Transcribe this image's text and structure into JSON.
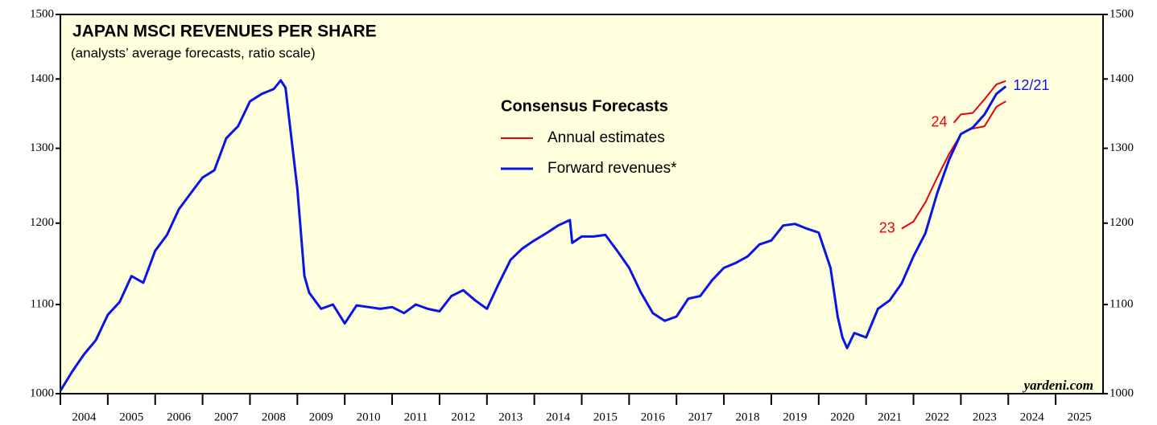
{
  "chart_data": {
    "type": "line",
    "title": "JAPAN MSCI REVENUES PER SHARE",
    "subtitle": "(analysts’ average forecasts, ratio scale)",
    "legend_title": "Consensus Forecasts",
    "source": "yardeni.com",
    "log_scale": true,
    "xlim": [
      2004,
      2026
    ],
    "xticks": [
      {
        "value": 2004,
        "label": "2004"
      },
      {
        "value": 2005,
        "label": "2005"
      },
      {
        "value": 2006,
        "label": "2006"
      },
      {
        "value": 2007,
        "label": "2007"
      },
      {
        "value": 2008,
        "label": "2008"
      },
      {
        "value": 2009,
        "label": "2009"
      },
      {
        "value": 2010,
        "label": "2010"
      },
      {
        "value": 2011,
        "label": "2011"
      },
      {
        "value": 2012,
        "label": "2012"
      },
      {
        "value": 2013,
        "label": "2013"
      },
      {
        "value": 2014,
        "label": "2014"
      },
      {
        "value": 2015,
        "label": "2015"
      },
      {
        "value": 2016,
        "label": "2016"
      },
      {
        "value": 2017,
        "label": "2017"
      },
      {
        "value": 2018,
        "label": "2018"
      },
      {
        "value": 2019,
        "label": "2019"
      },
      {
        "value": 2020,
        "label": "2020"
      },
      {
        "value": 2021,
        "label": "2021"
      },
      {
        "value": 2022,
        "label": "2022"
      },
      {
        "value": 2023,
        "label": "2023"
      },
      {
        "value": 2024,
        "label": "2024"
      },
      {
        "value": 2025,
        "label": "2025"
      }
    ],
    "ylim": [
      1000,
      1500
    ],
    "yticks": [
      1000,
      1100,
      1200,
      1300,
      1400,
      1500
    ],
    "series": [
      {
        "name": "Annual estimates",
        "color": "#e8000b",
        "lines": [
          {
            "label": "23",
            "x": [
              2021.75,
              2022.0,
              2022.25,
              2022.5,
              2022.75,
              2022.95
            ],
            "values": [
              1193,
              1202,
              1227,
              1260,
              1292,
              1314
            ]
          },
          {
            "label": "24",
            "x": [
              2022.85,
              2023.0,
              2023.25,
              2023.5,
              2023.75,
              2023.95
            ],
            "values": [
              1336,
              1348,
              1350,
              1370,
              1392,
              1397
            ]
          },
          {
            "x": [
              2023.2,
              2023.5,
              2023.75,
              2023.95
            ],
            "values": [
              1327,
              1331,
              1359,
              1367
            ]
          }
        ]
      },
      {
        "name": "Forward revenues*",
        "color": "#0a14e6",
        "end_label": "12/21",
        "x": [
          2004.0,
          2004.25,
          2004.5,
          2004.75,
          2005.0,
          2005.25,
          2005.5,
          2005.75,
          2006.0,
          2006.25,
          2006.5,
          2006.75,
          2007.0,
          2007.25,
          2007.5,
          2007.75,
          2008.0,
          2008.25,
          2008.5,
          2008.65,
          2008.75,
          2009.0,
          2009.15,
          2009.25,
          2009.5,
          2009.75,
          2010.0,
          2010.25,
          2010.5,
          2010.75,
          2011.0,
          2011.25,
          2011.5,
          2011.75,
          2012.0,
          2012.25,
          2012.5,
          2012.75,
          2013.0,
          2013.25,
          2013.5,
          2013.75,
          2014.0,
          2014.25,
          2014.5,
          2014.75,
          2014.8,
          2015.0,
          2015.25,
          2015.5,
          2015.75,
          2016.0,
          2016.25,
          2016.5,
          2016.75,
          2017.0,
          2017.25,
          2017.5,
          2017.75,
          2018.0,
          2018.25,
          2018.5,
          2018.75,
          2019.0,
          2019.25,
          2019.5,
          2019.75,
          2020.0,
          2020.25,
          2020.4,
          2020.5,
          2020.6,
          2020.75,
          2021.0,
          2021.25,
          2021.5,
          2021.75,
          2022.0,
          2022.25,
          2022.5,
          2022.75,
          2023.0,
          2023.25,
          2023.5,
          2023.75,
          2023.95
        ],
        "values": [
          1003,
          1024,
          1043,
          1059,
          1088,
          1103,
          1134,
          1126,
          1165,
          1185,
          1218,
          1239,
          1260,
          1270,
          1314,
          1331,
          1367,
          1378,
          1385,
          1398,
          1387,
          1245,
          1134,
          1114,
          1095,
          1100,
          1078,
          1099,
          1097,
          1095,
          1097,
          1090,
          1100,
          1095,
          1092,
          1110,
          1117,
          1105,
          1095,
          1125,
          1154,
          1168,
          1178,
          1187,
          1197,
          1204,
          1175,
          1183,
          1183,
          1185,
          1165,
          1144,
          1114,
          1090,
          1081,
          1086,
          1107,
          1110,
          1129,
          1144,
          1150,
          1158,
          1173,
          1178,
          1197,
          1199,
          1193,
          1188,
          1144,
          1086,
          1062,
          1050,
          1067,
          1062,
          1095,
          1105,
          1125,
          1158,
          1187,
          1239,
          1284,
          1320,
          1329,
          1348,
          1378,
          1389
        ]
      }
    ]
  }
}
